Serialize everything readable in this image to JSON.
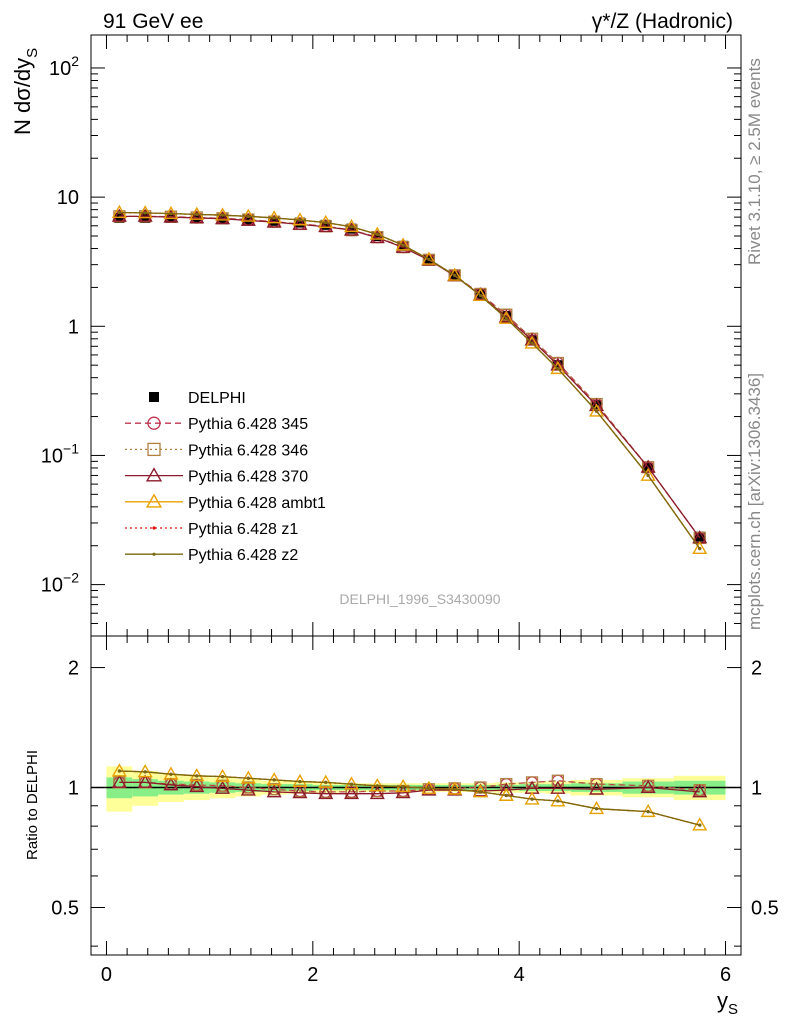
{
  "header": {
    "left_label": "91 GeV ee",
    "right_label": "γ*/Z (Hadronic)",
    "watermark": "DELPHI_1996_S3430090",
    "side_label_rivet": "Rivet 3.1.10, ≥ 2.5M events",
    "side_label_mcplots": "mcplots.cern.ch [arXiv:1306.3436]"
  },
  "chart_data": [
    {
      "type": "scatter",
      "panel": "main",
      "ylabel": "N dσ/dy_S",
      "yscale": "log",
      "ylim": [
        0.004,
        180
      ],
      "xlim": [
        -0.15,
        6.15
      ],
      "y_ticks": [
        {
          "value": 0.01,
          "base": "10",
          "exp": "−2"
        },
        {
          "value": 0.1,
          "base": "10",
          "exp": "−1"
        },
        {
          "value": 1,
          "base": "1",
          "exp": ""
        },
        {
          "value": 10,
          "base": "10",
          "exp": ""
        },
        {
          "value": 100,
          "base": "10",
          "exp": "2"
        }
      ],
      "x": [
        0.125,
        0.375,
        0.625,
        0.875,
        1.125,
        1.375,
        1.625,
        1.875,
        2.125,
        2.375,
        2.625,
        2.875,
        3.125,
        3.375,
        3.625,
        3.875,
        4.125,
        4.375,
        4.75,
        5.25,
        5.75
      ],
      "series": [
        {
          "name": "DELPHI",
          "color": "#000000",
          "marker": "square",
          "line": "none",
          "values": [
            6.9,
            6.9,
            6.9,
            6.85,
            6.8,
            6.7,
            6.55,
            6.35,
            6.1,
            5.7,
            5.0,
            4.2,
            3.3,
            2.5,
            1.78,
            1.2,
            0.78,
            0.5,
            0.245,
            0.08,
            0.0235
          ]
        },
        {
          "name": "Pythia 6.428 345",
          "color": "#c0334d",
          "marker": "circle",
          "line": "dashed",
          "values": [
            7.1,
            7.1,
            7.05,
            6.95,
            6.85,
            6.7,
            6.45,
            6.2,
            5.95,
            5.55,
            4.9,
            4.1,
            3.27,
            2.48,
            1.78,
            1.23,
            0.8,
            0.52,
            0.25,
            0.081,
            0.023
          ]
        },
        {
          "name": "Pythia 6.428 346",
          "color": "#b08040",
          "marker": "square-open",
          "line": "dotted",
          "values": [
            7.1,
            7.1,
            7.05,
            6.95,
            6.85,
            6.7,
            6.45,
            6.2,
            5.95,
            5.55,
            4.9,
            4.1,
            3.27,
            2.48,
            1.78,
            1.23,
            0.8,
            0.52,
            0.25,
            0.081,
            0.023
          ]
        },
        {
          "name": "Pythia 6.428 370",
          "color": "#8b1a2b",
          "marker": "triangle",
          "line": "solid",
          "values": [
            7.1,
            7.1,
            7.0,
            6.9,
            6.8,
            6.6,
            6.4,
            6.15,
            5.9,
            5.55,
            4.85,
            4.08,
            3.26,
            2.46,
            1.75,
            1.18,
            0.78,
            0.5,
            0.243,
            0.081,
            0.023
          ]
        },
        {
          "name": "Pythia 6.428 ambt1",
          "color": "#e8a000",
          "marker": "triangle",
          "line": "solid",
          "values": [
            7.6,
            7.55,
            7.45,
            7.35,
            7.25,
            7.1,
            6.9,
            6.65,
            6.35,
            5.9,
            5.15,
            4.25,
            3.3,
            2.48,
            1.73,
            1.15,
            0.74,
            0.47,
            0.22,
            0.07,
            0.019
          ]
        },
        {
          "name": "Pythia 6.428 z1",
          "color": "#e01010",
          "marker": "dot",
          "line": "dotted",
          "values": [
            7.6,
            7.55,
            7.45,
            7.35,
            7.25,
            7.1,
            6.9,
            6.65,
            6.35,
            5.9,
            5.15,
            4.25,
            3.3,
            2.48,
            1.73,
            1.15,
            0.74,
            0.47,
            0.22,
            0.07,
            0.019
          ]
        },
        {
          "name": "Pythia 6.428 z2",
          "color": "#7a6a10",
          "marker": "dot",
          "line": "solid",
          "values": [
            7.6,
            7.55,
            7.45,
            7.35,
            7.25,
            7.1,
            6.9,
            6.65,
            6.35,
            5.9,
            5.15,
            4.25,
            3.3,
            2.48,
            1.73,
            1.15,
            0.74,
            0.47,
            0.22,
            0.07,
            0.019
          ]
        }
      ]
    },
    {
      "type": "scatter",
      "panel": "ratio",
      "ylabel": "Ratio to DELPHI",
      "xlabel": "y_S",
      "yscale": "log",
      "ylim": [
        0.38,
        2.4
      ],
      "xlim": [
        -0.15,
        6.15
      ],
      "x_ticks": [
        0,
        2,
        4,
        6
      ],
      "y_ticks": [
        0.5,
        1,
        2
      ],
      "x": [
        0.125,
        0.375,
        0.625,
        0.875,
        1.125,
        1.375,
        1.625,
        1.875,
        2.125,
        2.375,
        2.625,
        2.875,
        3.125,
        3.375,
        3.625,
        3.875,
        4.125,
        4.375,
        4.75,
        5.25,
        5.75
      ],
      "bin_edges": [
        0,
        0.25,
        0.5,
        0.75,
        1.0,
        1.25,
        1.5,
        1.75,
        2.0,
        2.25,
        2.5,
        2.75,
        3.0,
        3.25,
        3.5,
        3.75,
        4.0,
        4.25,
        4.5,
        5.0,
        5.5,
        6.0
      ],
      "band_inner": [
        [
          0.94,
          1.06
        ],
        [
          0.95,
          1.05
        ],
        [
          0.96,
          1.04
        ],
        [
          0.965,
          1.035
        ],
        [
          0.97,
          1.03
        ],
        [
          0.975,
          1.025
        ],
        [
          0.98,
          1.02
        ],
        [
          0.98,
          1.02
        ],
        [
          0.985,
          1.015
        ],
        [
          0.985,
          1.015
        ],
        [
          0.985,
          1.015
        ],
        [
          0.985,
          1.015
        ],
        [
          0.985,
          1.015
        ],
        [
          0.985,
          1.015
        ],
        [
          0.985,
          1.015
        ],
        [
          0.985,
          1.015
        ],
        [
          0.98,
          1.02
        ],
        [
          0.98,
          1.02
        ],
        [
          0.975,
          1.025
        ],
        [
          0.965,
          1.035
        ],
        [
          0.96,
          1.04
        ]
      ],
      "band_outer": [
        [
          0.87,
          1.13
        ],
        [
          0.9,
          1.1
        ],
        [
          0.92,
          1.08
        ],
        [
          0.93,
          1.07
        ],
        [
          0.94,
          1.06
        ],
        [
          0.95,
          1.05
        ],
        [
          0.96,
          1.04
        ],
        [
          0.965,
          1.035
        ],
        [
          0.97,
          1.03
        ],
        [
          0.975,
          1.025
        ],
        [
          0.975,
          1.025
        ],
        [
          0.975,
          1.025
        ],
        [
          0.975,
          1.025
        ],
        [
          0.975,
          1.025
        ],
        [
          0.975,
          1.025
        ],
        [
          0.97,
          1.03
        ],
        [
          0.97,
          1.03
        ],
        [
          0.965,
          1.035
        ],
        [
          0.955,
          1.045
        ],
        [
          0.945,
          1.055
        ],
        [
          0.93,
          1.07
        ]
      ],
      "band_colors": {
        "inner": "#88ee88",
        "outer": "#ffff99"
      },
      "series": [
        {
          "name": "Pythia 6.428 345",
          "color": "#c0334d",
          "marker": "circle",
          "line": "dashed",
          "values": [
            1.03,
            1.03,
            1.02,
            1.015,
            1.01,
            1.0,
            0.99,
            0.98,
            0.975,
            0.975,
            0.98,
            0.98,
            0.99,
            0.995,
            1.0,
            1.02,
            1.03,
            1.04,
            1.02,
            1.01,
            0.985
          ]
        },
        {
          "name": "Pythia 6.428 346",
          "color": "#b08040",
          "marker": "square-open",
          "line": "dotted",
          "values": [
            1.03,
            1.03,
            1.02,
            1.015,
            1.01,
            1.0,
            0.99,
            0.98,
            0.975,
            0.975,
            0.98,
            0.98,
            0.99,
            0.995,
            1.0,
            1.02,
            1.03,
            1.04,
            1.02,
            1.01,
            0.985
          ]
        },
        {
          "name": "Pythia 6.428 370",
          "color": "#8b1a2b",
          "marker": "triangle",
          "line": "solid",
          "values": [
            1.03,
            1.03,
            1.015,
            1.005,
            0.995,
            0.985,
            0.975,
            0.97,
            0.965,
            0.965,
            0.965,
            0.97,
            0.985,
            0.985,
            0.98,
            0.985,
            0.995,
            0.995,
            0.99,
            1.0,
            0.975
          ]
        },
        {
          "name": "Pythia 6.428 ambt1",
          "color": "#e8a000",
          "marker": "triangle",
          "line": "solid",
          "values": [
            1.1,
            1.095,
            1.08,
            1.07,
            1.065,
            1.055,
            1.045,
            1.035,
            1.03,
            1.02,
            1.01,
            1.005,
            0.995,
            0.99,
            0.975,
            0.955,
            0.935,
            0.925,
            0.885,
            0.87,
            0.805
          ]
        },
        {
          "name": "Pythia 6.428 z1",
          "color": "#e01010",
          "marker": "dot",
          "line": "dotted",
          "values": [
            1.1,
            1.095,
            1.08,
            1.07,
            1.065,
            1.055,
            1.045,
            1.035,
            1.03,
            1.02,
            1.01,
            1.005,
            0.995,
            0.99,
            0.975,
            0.955,
            0.935,
            0.925,
            0.885,
            0.87,
            0.805
          ]
        },
        {
          "name": "Pythia 6.428 z2",
          "color": "#7a6a10",
          "marker": "dot",
          "line": "solid",
          "values": [
            1.1,
            1.095,
            1.08,
            1.07,
            1.065,
            1.055,
            1.045,
            1.035,
            1.03,
            1.02,
            1.01,
            1.005,
            0.995,
            0.99,
            0.975,
            0.955,
            0.935,
            0.925,
            0.885,
            0.87,
            0.805
          ]
        }
      ]
    }
  ]
}
